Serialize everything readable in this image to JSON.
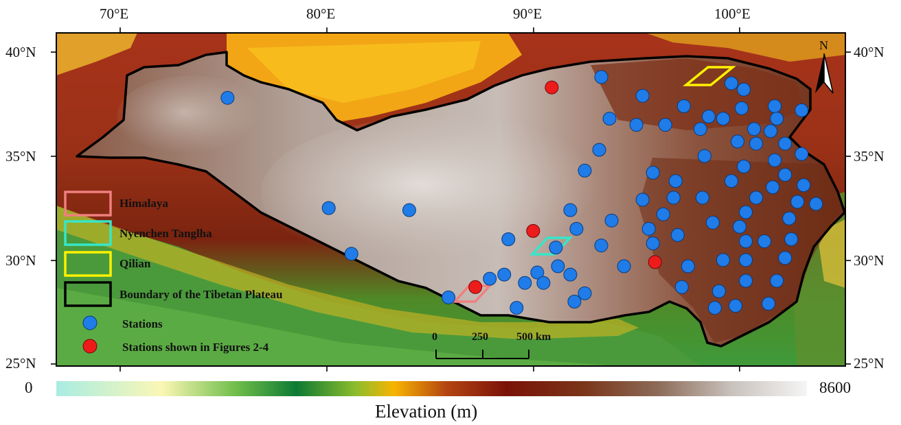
{
  "map": {
    "x_ticks": [
      "70°E",
      "80°E",
      "90°E",
      "100°E"
    ],
    "y_ticks": [
      "40°N",
      "35°N",
      "30°N",
      "25°N"
    ],
    "north_label": "N"
  },
  "legend": {
    "himalaya": "Himalaya",
    "nyenchen": "Nyenchen Tanglha",
    "qilian": "Qilian",
    "boundary": "Boundary of the Tibetan Plateau",
    "stations": "Stations",
    "stations_fig": "Stations shown in Figures 2-4"
  },
  "scale_bar": {
    "labels": [
      "0",
      "250",
      "500 km"
    ]
  },
  "colorbar": {
    "min_label": "0",
    "max_label": "8600",
    "title": "Elevation (m)"
  },
  "colors": {
    "station": "#1f7ce8",
    "station_fig": "#ee1b1b",
    "himalaya": "#f07f7f",
    "nyenchen": "#35e7c9",
    "qilian": "#fff200",
    "boundary": "#000000"
  },
  "stations": [
    {
      "lon": 75.2,
      "lat": 37.8
    },
    {
      "lon": 80.1,
      "lat": 32.5
    },
    {
      "lon": 81.2,
      "lat": 30.3
    },
    {
      "lon": 84.0,
      "lat": 32.4
    },
    {
      "lon": 85.9,
      "lat": 28.2
    },
    {
      "lon": 87.9,
      "lat": 29.1
    },
    {
      "lon": 88.8,
      "lat": 31.0
    },
    {
      "lon": 89.2,
      "lat": 27.7
    },
    {
      "lon": 88.6,
      "lat": 29.3
    },
    {
      "lon": 89.6,
      "lat": 28.9
    },
    {
      "lon": 90.2,
      "lat": 29.4
    },
    {
      "lon": 90.5,
      "lat": 28.9
    },
    {
      "lon": 91.2,
      "lat": 29.7
    },
    {
      "lon": 91.8,
      "lat": 29.3
    },
    {
      "lon": 92.0,
      "lat": 28.0
    },
    {
      "lon": 92.5,
      "lat": 28.4
    },
    {
      "lon": 91.1,
      "lat": 30.6
    },
    {
      "lon": 92.1,
      "lat": 31.5
    },
    {
      "lon": 91.8,
      "lat": 32.4
    },
    {
      "lon": 92.5,
      "lat": 34.3
    },
    {
      "lon": 93.2,
      "lat": 35.3
    },
    {
      "lon": 93.3,
      "lat": 30.7
    },
    {
      "lon": 93.8,
      "lat": 31.9
    },
    {
      "lon": 94.4,
      "lat": 29.7
    },
    {
      "lon": 93.7,
      "lat": 36.8
    },
    {
      "lon": 93.3,
      "lat": 38.8
    },
    {
      "lon": 95.0,
      "lat": 36.5
    },
    {
      "lon": 95.3,
      "lat": 37.9
    },
    {
      "lon": 95.3,
      "lat": 32.9
    },
    {
      "lon": 95.6,
      "lat": 31.5
    },
    {
      "lon": 95.8,
      "lat": 30.8
    },
    {
      "lon": 95.8,
      "lat": 34.2
    },
    {
      "lon": 96.4,
      "lat": 36.5
    },
    {
      "lon": 96.3,
      "lat": 32.2
    },
    {
      "lon": 96.8,
      "lat": 33.0
    },
    {
      "lon": 96.9,
      "lat": 33.8
    },
    {
      "lon": 97.0,
      "lat": 31.2
    },
    {
      "lon": 97.2,
      "lat": 28.7
    },
    {
      "lon": 97.3,
      "lat": 37.4
    },
    {
      "lon": 97.5,
      "lat": 29.7
    },
    {
      "lon": 98.1,
      "lat": 36.3
    },
    {
      "lon": 98.2,
      "lat": 33.0
    },
    {
      "lon": 98.3,
      "lat": 35.0
    },
    {
      "lon": 98.5,
      "lat": 36.9
    },
    {
      "lon": 98.7,
      "lat": 31.8
    },
    {
      "lon": 99.0,
      "lat": 28.5
    },
    {
      "lon": 98.8,
      "lat": 27.7
    },
    {
      "lon": 99.2,
      "lat": 36.8
    },
    {
      "lon": 99.2,
      "lat": 30.0
    },
    {
      "lon": 99.6,
      "lat": 33.8
    },
    {
      "lon": 99.6,
      "lat": 38.5
    },
    {
      "lon": 99.8,
      "lat": 27.8
    },
    {
      "lon": 99.9,
      "lat": 35.7
    },
    {
      "lon": 100.0,
      "lat": 31.6
    },
    {
      "lon": 100.1,
      "lat": 37.3
    },
    {
      "lon": 100.2,
      "lat": 38.2
    },
    {
      "lon": 100.2,
      "lat": 34.5
    },
    {
      "lon": 100.3,
      "lat": 32.3
    },
    {
      "lon": 100.3,
      "lat": 30.9
    },
    {
      "lon": 100.3,
      "lat": 30.0
    },
    {
      "lon": 100.3,
      "lat": 29.0
    },
    {
      "lon": 100.7,
      "lat": 36.3
    },
    {
      "lon": 100.8,
      "lat": 35.6
    },
    {
      "lon": 100.8,
      "lat": 33.0
    },
    {
      "lon": 101.2,
      "lat": 30.9
    },
    {
      "lon": 101.4,
      "lat": 27.9
    },
    {
      "lon": 101.5,
      "lat": 36.2
    },
    {
      "lon": 101.6,
      "lat": 33.5
    },
    {
      "lon": 101.7,
      "lat": 34.8
    },
    {
      "lon": 101.7,
      "lat": 37.4
    },
    {
      "lon": 101.8,
      "lat": 36.8
    },
    {
      "lon": 101.8,
      "lat": 29.0
    },
    {
      "lon": 102.2,
      "lat": 35.6
    },
    {
      "lon": 102.2,
      "lat": 34.1
    },
    {
      "lon": 102.2,
      "lat": 30.1
    },
    {
      "lon": 102.4,
      "lat": 32.0
    },
    {
      "lon": 102.5,
      "lat": 31.0
    },
    {
      "lon": 102.8,
      "lat": 32.8
    },
    {
      "lon": 103.0,
      "lat": 37.2
    },
    {
      "lon": 103.0,
      "lat": 35.1
    },
    {
      "lon": 103.1,
      "lat": 33.6
    },
    {
      "lon": 103.7,
      "lat": 32.7
    }
  ],
  "stations_fig": [
    {
      "lon": 90.9,
      "lat": 38.3
    },
    {
      "lon": 90.0,
      "lat": 31.4
    },
    {
      "lon": 87.2,
      "lat": 28.7
    },
    {
      "lon": 95.9,
      "lat": 29.9
    }
  ]
}
